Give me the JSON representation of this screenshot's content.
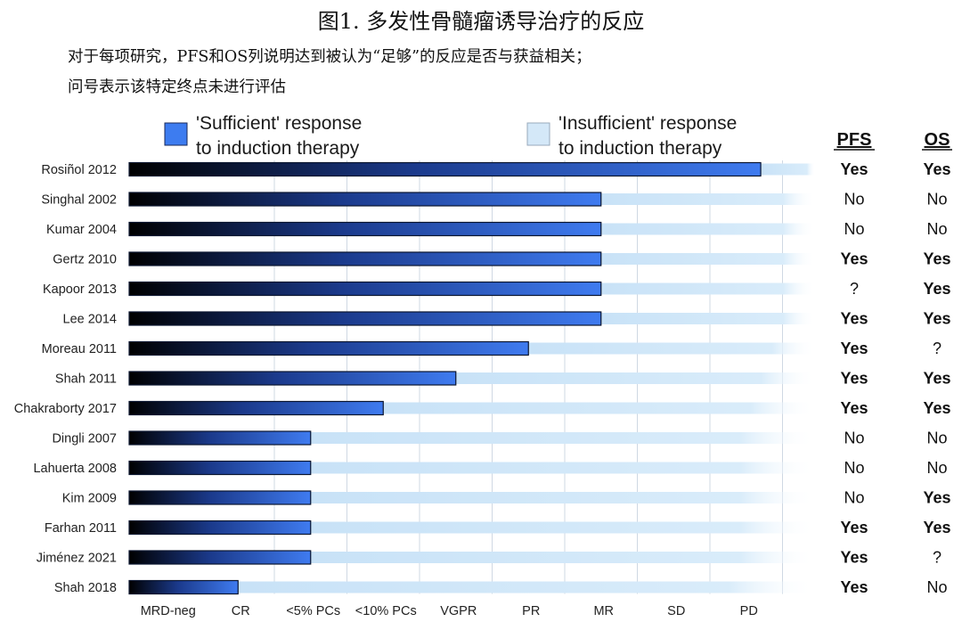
{
  "title": "图1. 多发性骨髓瘤诱导治疗的反应",
  "subtitle_line1": "对于每项研究，PFS和OS列说明达到被认为“足够”的反应是否与获益相关；",
  "subtitle_line2": "问号表示该特定终点未进行评估",
  "colors": {
    "sufficient_dark": "#000000",
    "sufficient_mid": "#1b3a8c",
    "sufficient_end": "#3f7bf0",
    "insufficient": "#c8e2f7",
    "legend_sufficient": "#3d7cf0",
    "legend_insufficient": "#d4e8f8"
  },
  "chart_data": {
    "type": "bar",
    "legend": {
      "sufficient": [
        "'Sufficient' response",
        "to induction therapy"
      ],
      "insufficient": [
        "'Insufficient' response",
        "to induction therapy"
      ],
      "placement": "top"
    },
    "response_levels": [
      "MRD-neg",
      "CR",
      "<5% PCs",
      "<10% PCs",
      "VGPR",
      "PR",
      "MR",
      "SD",
      "PD"
    ],
    "columns": [
      "PFS",
      "OS"
    ],
    "studies": [
      {
        "name": "Rosiñol 2012",
        "sufficient_up_to": "SD",
        "sufficient_extent": 8.7,
        "pfs": "Yes",
        "os": "Yes"
      },
      {
        "name": "Singhal 2002",
        "sufficient_up_to": "PR",
        "sufficient_extent": 6.5,
        "pfs": "No",
        "os": "No"
      },
      {
        "name": "Kumar 2004",
        "sufficient_up_to": "PR",
        "sufficient_extent": 6.5,
        "pfs": "No",
        "os": "No"
      },
      {
        "name": "Gertz 2010",
        "sufficient_up_to": "PR",
        "sufficient_extent": 6.5,
        "pfs": "Yes",
        "os": "Yes"
      },
      {
        "name": "Kapoor 2013",
        "sufficient_up_to": "PR",
        "sufficient_extent": 6.5,
        "pfs": "?",
        "os": "Yes"
      },
      {
        "name": "Lee 2014",
        "sufficient_up_to": "PR",
        "sufficient_extent": 6.5,
        "pfs": "Yes",
        "os": "Yes"
      },
      {
        "name": "Moreau 2011",
        "sufficient_up_to": "VGPR",
        "sufficient_extent": 5.5,
        "pfs": "Yes",
        "os": "?"
      },
      {
        "name": "Shah 2011",
        "sufficient_up_to": "<10% PCs",
        "sufficient_extent": 4.5,
        "pfs": "Yes",
        "os": "Yes"
      },
      {
        "name": "Chakraborty 2017",
        "sufficient_up_to": "<5% PCs",
        "sufficient_extent": 3.5,
        "pfs": "Yes",
        "os": "Yes"
      },
      {
        "name": "Dingli 2007",
        "sufficient_up_to": "CR",
        "sufficient_extent": 2.5,
        "pfs": "No",
        "os": "No"
      },
      {
        "name": "Lahuerta 2008",
        "sufficient_up_to": "CR",
        "sufficient_extent": 2.5,
        "pfs": "No",
        "os": "No"
      },
      {
        "name": "Kim 2009",
        "sufficient_up_to": "CR",
        "sufficient_extent": 2.5,
        "pfs": "No",
        "os": "Yes"
      },
      {
        "name": "Farhan 2011",
        "sufficient_up_to": "CR",
        "sufficient_extent": 2.5,
        "pfs": "Yes",
        "os": "Yes"
      },
      {
        "name": "Jiménez 2021",
        "sufficient_up_to": "CR",
        "sufficient_extent": 2.5,
        "pfs": "Yes",
        "os": "?"
      },
      {
        "name": "Shah 2018",
        "sufficient_up_to": "MRD-neg",
        "sufficient_extent": 1.5,
        "pfs": "Yes",
        "os": "No"
      }
    ]
  }
}
